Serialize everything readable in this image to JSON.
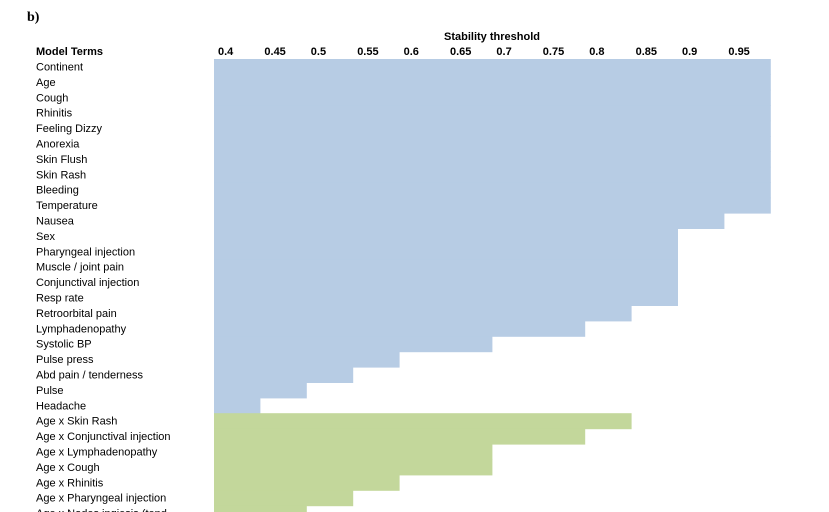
{
  "panel_label": "b)",
  "chart_data": {
    "type": "heatmap",
    "title": "Stability threshold",
    "row_header": "Model Terms",
    "thresholds": [
      "0.4",
      "0.45",
      "0.5",
      "0.55",
      "0.6",
      "0.65",
      "0.7",
      "0.75",
      "0.8",
      "0.85",
      "0.9",
      "0.95"
    ],
    "colors": {
      "main_effect": "#b7cce4",
      "interaction": "#c3d79b"
    },
    "rows": [
      {
        "term": "Continent",
        "group": "main_effect",
        "max_threshold": 1.0
      },
      {
        "term": "Age",
        "group": "main_effect",
        "max_threshold": 1.0
      },
      {
        "term": "Cough",
        "group": "main_effect",
        "max_threshold": 1.0
      },
      {
        "term": "Rhinitis",
        "group": "main_effect",
        "max_threshold": 1.0
      },
      {
        "term": "Feeling Dizzy",
        "group": "main_effect",
        "max_threshold": 1.0
      },
      {
        "term": "Anorexia",
        "group": "main_effect",
        "max_threshold": 1.0
      },
      {
        "term": "Skin Flush",
        "group": "main_effect",
        "max_threshold": 1.0
      },
      {
        "term": "Skin Rash",
        "group": "main_effect",
        "max_threshold": 1.0
      },
      {
        "term": "Bleeding",
        "group": "main_effect",
        "max_threshold": 1.0
      },
      {
        "term": "Temperature",
        "group": "main_effect",
        "max_threshold": 1.0
      },
      {
        "term": "Nausea",
        "group": "main_effect",
        "max_threshold": 0.95
      },
      {
        "term": "Sex",
        "group": "main_effect",
        "max_threshold": 0.9
      },
      {
        "term": "Pharyngeal injection",
        "group": "main_effect",
        "max_threshold": 0.9
      },
      {
        "term": "Muscle / joint pain",
        "group": "main_effect",
        "max_threshold": 0.9
      },
      {
        "term": "Conjunctival injection",
        "group": "main_effect",
        "max_threshold": 0.9
      },
      {
        "term": "Resp rate",
        "group": "main_effect",
        "max_threshold": 0.9
      },
      {
        "term": "Retroorbital pain",
        "group": "main_effect",
        "max_threshold": 0.85
      },
      {
        "term": "Lymphadenopathy",
        "group": "main_effect",
        "max_threshold": 0.8
      },
      {
        "term": "Systolic BP",
        "group": "main_effect",
        "max_threshold": 0.7
      },
      {
        "term": "Pulse press",
        "group": "main_effect",
        "max_threshold": 0.6
      },
      {
        "term": "Abd pain / tenderness",
        "group": "main_effect",
        "max_threshold": 0.55
      },
      {
        "term": "Pulse",
        "group": "main_effect",
        "max_threshold": 0.5
      },
      {
        "term": "Headache",
        "group": "main_effect",
        "max_threshold": 0.45
      },
      {
        "term": "Age x Skin Rash",
        "group": "interaction",
        "max_threshold": 0.85
      },
      {
        "term": "Age x Conjunctival injection",
        "group": "interaction",
        "max_threshold": 0.8
      },
      {
        "term": "Age x Lymphadenopathy",
        "group": "interaction",
        "max_threshold": 0.7
      },
      {
        "term": "Age x Cough",
        "group": "interaction",
        "max_threshold": 0.7
      },
      {
        "term": "Age x Rhinitis",
        "group": "interaction",
        "max_threshold": 0.6
      },
      {
        "term": "Age x Pharyngeal injection",
        "group": "interaction",
        "max_threshold": 0.55
      },
      {
        "term": "Age x Nodes ingiesis (tend...",
        "group": "interaction",
        "max_threshold": 0.5
      }
    ]
  }
}
